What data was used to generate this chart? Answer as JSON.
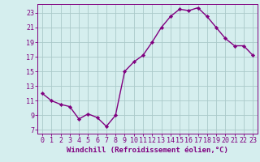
{
  "x": [
    0,
    1,
    2,
    3,
    4,
    5,
    6,
    7,
    8,
    9,
    10,
    11,
    12,
    13,
    14,
    15,
    16,
    17,
    18,
    19,
    20,
    21,
    22,
    23
  ],
  "y": [
    12.0,
    11.0,
    10.5,
    10.2,
    8.5,
    9.2,
    8.7,
    7.5,
    9.0,
    15.0,
    16.3,
    17.2,
    19.0,
    21.0,
    22.5,
    23.5,
    23.3,
    23.7,
    22.5,
    21.0,
    19.5,
    18.5,
    18.5,
    17.2
  ],
  "line_color": "#800080",
  "marker": "D",
  "markersize": 2.2,
  "bg_color": "#d5eeee",
  "grid_color": "#aacaca",
  "xlabel": "Windchill (Refroidissement éolien,°C)",
  "yticks": [
    7,
    9,
    11,
    13,
    15,
    17,
    19,
    21,
    23
  ],
  "xticks": [
    0,
    1,
    2,
    3,
    4,
    5,
    6,
    7,
    8,
    9,
    10,
    11,
    12,
    13,
    14,
    15,
    16,
    17,
    18,
    19,
    20,
    21,
    22,
    23
  ],
  "ylim": [
    6.5,
    24.2
  ],
  "xlim": [
    -0.5,
    23.5
  ],
  "axis_color": "#800080",
  "tick_color": "#800080",
  "xlabel_color": "#800080",
  "xlabel_fontsize": 6.5,
  "tick_fontsize": 6.0,
  "linewidth": 1.0
}
